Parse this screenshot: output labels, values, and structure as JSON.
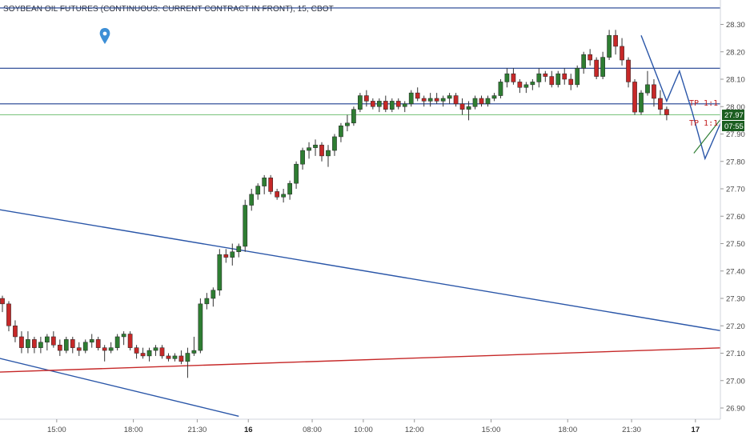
{
  "header": {
    "title": "SOYBEAN OIL FUTURES (CONTINUOUS: CURRENT CONTRACT IN FRONT), 15, CBOT"
  },
  "colors": {
    "up": "#2e7d32",
    "down": "#c62828",
    "hline": "#1e3f8f",
    "trend": "#2a56a8",
    "support": "#c62828",
    "price_badge": "#1b5e20",
    "time_badge": "#1b5e20",
    "marker": "#3d8fd6"
  },
  "price_badge": "27.97",
  "time_badge": "07:55",
  "annotations": {
    "tp1": "TP 1:1",
    "tp2": "TP 1:1"
  },
  "chart_data": {
    "type": "candlestick",
    "title": "SOYBEAN OIL FUTURES (CONTINUOUS: CURRENT CONTRACT IN FRONT), 15, CBOT",
    "y_ticks": [
      "28.30",
      "28.20",
      "28.10",
      "28.00",
      "27.90",
      "27.80",
      "27.70",
      "27.60",
      "27.50",
      "27.40",
      "27.30",
      "27.20",
      "27.10",
      "27.00",
      "26.90"
    ],
    "ylim": [
      26.86,
      28.35
    ],
    "x_ticks": [
      {
        "label": "15:00",
        "i": 8
      },
      {
        "label": "18:00",
        "i": 20
      },
      {
        "label": "21:30",
        "i": 30
      },
      {
        "label": "16",
        "i": 38,
        "bold": true
      },
      {
        "label": "08:00",
        "i": 48
      },
      {
        "label": "10:00",
        "i": 56
      },
      {
        "label": "12:00",
        "i": 64
      },
      {
        "label": "15:00",
        "i": 76
      },
      {
        "label": "18:00",
        "i": 88
      },
      {
        "label": "21:30",
        "i": 98
      },
      {
        "label": "17",
        "i": 108,
        "bold": true
      }
    ],
    "horizontal_levels": [
      28.36,
      28.14,
      28.01,
      27.97
    ],
    "candles": [
      [
        27.3,
        27.31,
        27.25,
        27.28
      ],
      [
        27.28,
        27.29,
        27.18,
        27.2
      ],
      [
        27.2,
        27.22,
        27.14,
        27.16
      ],
      [
        27.16,
        27.18,
        27.1,
        27.12
      ],
      [
        27.12,
        27.18,
        27.1,
        27.15
      ],
      [
        27.15,
        27.16,
        27.1,
        27.12
      ],
      [
        27.12,
        27.16,
        27.1,
        27.14
      ],
      [
        27.14,
        27.17,
        27.11,
        27.16
      ],
      [
        27.16,
        27.18,
        27.12,
        27.13
      ],
      [
        27.13,
        27.15,
        27.09,
        27.11
      ],
      [
        27.11,
        27.16,
        27.1,
        27.15
      ],
      [
        27.15,
        27.16,
        27.1,
        27.12
      ],
      [
        27.12,
        27.14,
        27.09,
        27.11
      ],
      [
        27.11,
        27.15,
        27.1,
        27.14
      ],
      [
        27.14,
        27.17,
        27.12,
        27.15
      ],
      [
        27.15,
        27.16,
        27.11,
        27.12
      ],
      [
        27.12,
        27.13,
        27.07,
        27.11
      ],
      [
        27.11,
        27.14,
        27.1,
        27.12
      ],
      [
        27.12,
        27.17,
        27.11,
        27.16
      ],
      [
        27.16,
        27.18,
        27.13,
        27.17
      ],
      [
        27.17,
        27.18,
        27.11,
        27.12
      ],
      [
        27.12,
        27.13,
        27.08,
        27.1
      ],
      [
        27.1,
        27.12,
        27.08,
        27.09
      ],
      [
        27.09,
        27.12,
        27.07,
        27.11
      ],
      [
        27.11,
        27.13,
        27.09,
        27.12
      ],
      [
        27.12,
        27.13,
        27.08,
        27.09
      ],
      [
        27.09,
        27.1,
        27.07,
        27.08
      ],
      [
        27.08,
        27.1,
        27.07,
        27.09
      ],
      [
        27.09,
        27.11,
        27.06,
        27.07
      ],
      [
        27.07,
        27.12,
        27.01,
        27.1
      ],
      [
        27.1,
        27.16,
        27.09,
        27.11
      ],
      [
        27.11,
        27.3,
        27.1,
        27.28
      ],
      [
        27.28,
        27.32,
        27.26,
        27.3
      ],
      [
        27.3,
        27.34,
        27.27,
        27.33
      ],
      [
        27.33,
        27.48,
        27.31,
        27.46
      ],
      [
        27.46,
        27.48,
        27.43,
        27.45
      ],
      [
        27.45,
        27.5,
        27.42,
        27.47
      ],
      [
        27.47,
        27.5,
        27.45,
        27.49
      ],
      [
        27.49,
        27.66,
        27.47,
        27.64
      ],
      [
        27.64,
        27.7,
        27.62,
        27.68
      ],
      [
        27.68,
        27.72,
        27.66,
        27.71
      ],
      [
        27.71,
        27.75,
        27.68,
        27.74
      ],
      [
        27.74,
        27.75,
        27.68,
        27.69
      ],
      [
        27.69,
        27.7,
        27.66,
        27.67
      ],
      [
        27.67,
        27.7,
        27.65,
        27.68
      ],
      [
        27.68,
        27.73,
        27.66,
        27.72
      ],
      [
        27.72,
        27.8,
        27.7,
        27.79
      ],
      [
        27.79,
        27.85,
        27.77,
        27.84
      ],
      [
        27.84,
        27.87,
        27.81,
        27.85
      ],
      [
        27.85,
        27.88,
        27.82,
        27.86
      ],
      [
        27.86,
        27.87,
        27.8,
        27.82
      ],
      [
        27.82,
        27.86,
        27.78,
        27.84
      ],
      [
        27.84,
        27.9,
        27.82,
        27.89
      ],
      [
        27.89,
        27.94,
        27.87,
        27.93
      ],
      [
        27.93,
        27.97,
        27.91,
        27.94
      ],
      [
        27.94,
        28.0,
        27.93,
        27.99
      ],
      [
        27.99,
        28.05,
        27.98,
        28.04
      ],
      [
        28.04,
        28.06,
        28.0,
        28.02
      ],
      [
        28.02,
        28.03,
        27.99,
        28.0
      ],
      [
        28.0,
        28.03,
        27.98,
        28.02
      ],
      [
        28.02,
        28.04,
        27.98,
        27.99
      ],
      [
        27.99,
        28.03,
        27.98,
        28.02
      ],
      [
        28.02,
        28.03,
        27.99,
        28.0
      ],
      [
        28.0,
        28.02,
        27.98,
        28.01
      ],
      [
        28.01,
        28.06,
        28.0,
        28.05
      ],
      [
        28.05,
        28.07,
        28.02,
        28.03
      ],
      [
        28.03,
        28.04,
        28.0,
        28.02
      ],
      [
        28.02,
        28.05,
        28.0,
        28.03
      ],
      [
        28.03,
        28.05,
        28.01,
        28.02
      ],
      [
        28.02,
        28.04,
        28.0,
        28.03
      ],
      [
        28.03,
        28.05,
        28.01,
        28.04
      ],
      [
        28.04,
        28.05,
        28.0,
        28.01
      ],
      [
        28.01,
        28.03,
        27.97,
        27.99
      ],
      [
        27.99,
        28.02,
        27.95,
        28.0
      ],
      [
        28.0,
        28.04,
        27.99,
        28.03
      ],
      [
        28.03,
        28.04,
        28.0,
        28.01
      ],
      [
        28.01,
        28.04,
        28.0,
        28.03
      ],
      [
        28.03,
        28.05,
        28.02,
        28.04
      ],
      [
        28.04,
        28.1,
        28.03,
        28.09
      ],
      [
        28.09,
        28.14,
        28.07,
        28.12
      ],
      [
        28.12,
        28.14,
        28.08,
        28.09
      ],
      [
        28.09,
        28.1,
        28.05,
        28.07
      ],
      [
        28.07,
        28.09,
        28.05,
        28.08
      ],
      [
        28.08,
        28.1,
        28.06,
        28.09
      ],
      [
        28.09,
        28.14,
        28.07,
        28.12
      ],
      [
        28.12,
        28.13,
        28.09,
        28.11
      ],
      [
        28.11,
        28.13,
        28.07,
        28.08
      ],
      [
        28.08,
        28.13,
        28.07,
        28.12
      ],
      [
        28.12,
        28.14,
        28.08,
        28.1
      ],
      [
        28.1,
        28.12,
        28.06,
        28.08
      ],
      [
        28.08,
        28.15,
        28.07,
        28.14
      ],
      [
        28.14,
        28.2,
        28.12,
        28.19
      ],
      [
        28.19,
        28.21,
        28.15,
        28.17
      ],
      [
        28.17,
        28.18,
        28.1,
        28.11
      ],
      [
        28.11,
        28.2,
        28.1,
        28.18
      ],
      [
        28.18,
        28.28,
        28.17,
        28.26
      ],
      [
        28.26,
        28.28,
        28.19,
        28.22
      ],
      [
        28.22,
        28.25,
        28.15,
        28.17
      ],
      [
        28.17,
        28.18,
        28.07,
        28.09
      ],
      [
        28.09,
        28.1,
        27.97,
        27.98
      ],
      [
        27.98,
        28.06,
        27.97,
        28.05
      ],
      [
        28.05,
        28.13,
        28.04,
        28.08
      ],
      [
        28.08,
        28.1,
        28.0,
        28.03
      ],
      [
        28.03,
        28.06,
        27.97,
        27.99
      ],
      [
        27.99,
        28.0,
        27.95,
        27.97
      ]
    ],
    "trendlines": [
      {
        "name": "upper-descending",
        "from": [
          -2,
          27.63
        ],
        "to": [
          113,
          27.18
        ]
      },
      {
        "name": "lower-descending",
        "from": [
          -2,
          27.09
        ],
        "to": [
          37,
          26.87
        ]
      },
      {
        "name": "support-rising",
        "from": [
          -2,
          27.03
        ],
        "to": [
          113,
          27.12
        ]
      }
    ],
    "projection": [
      [
        100,
        28.26
      ],
      [
        104,
        28.02
      ],
      [
        106,
        28.13
      ],
      [
        108,
        27.98
      ],
      [
        110,
        27.81
      ],
      [
        113,
        27.97
      ]
    ]
  }
}
